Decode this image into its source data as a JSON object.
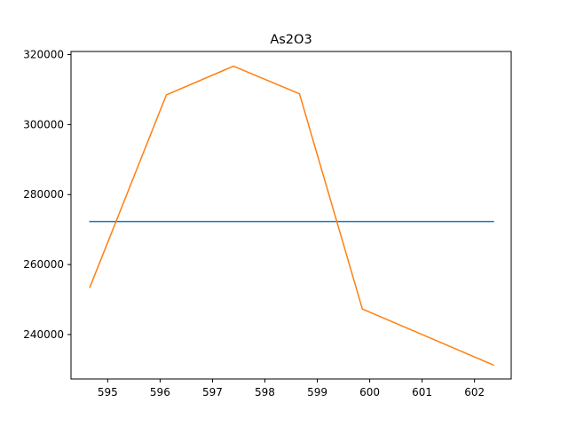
{
  "chart_data": {
    "type": "line",
    "title": "As2O3",
    "xlabel": "",
    "ylabel": "",
    "xlim": [
      594.3,
      602.7
    ],
    "ylim": [
      227300,
      320900
    ],
    "xticks": [
      595,
      596,
      597,
      598,
      599,
      600,
      601,
      602
    ],
    "yticks": [
      240000,
      260000,
      280000,
      300000,
      320000
    ],
    "grid": false,
    "legend": "none",
    "series": [
      {
        "color": "#1f77b4",
        "x": [
          594.66,
          602.36
        ],
        "y": [
          272300,
          272300
        ]
      },
      {
        "color": "#ff7f0e",
        "x": [
          594.66,
          596.12,
          597.4,
          598.66,
          599.86,
          602.36
        ],
        "y": [
          253500,
          308500,
          316700,
          308800,
          247300,
          231300
        ]
      }
    ]
  }
}
